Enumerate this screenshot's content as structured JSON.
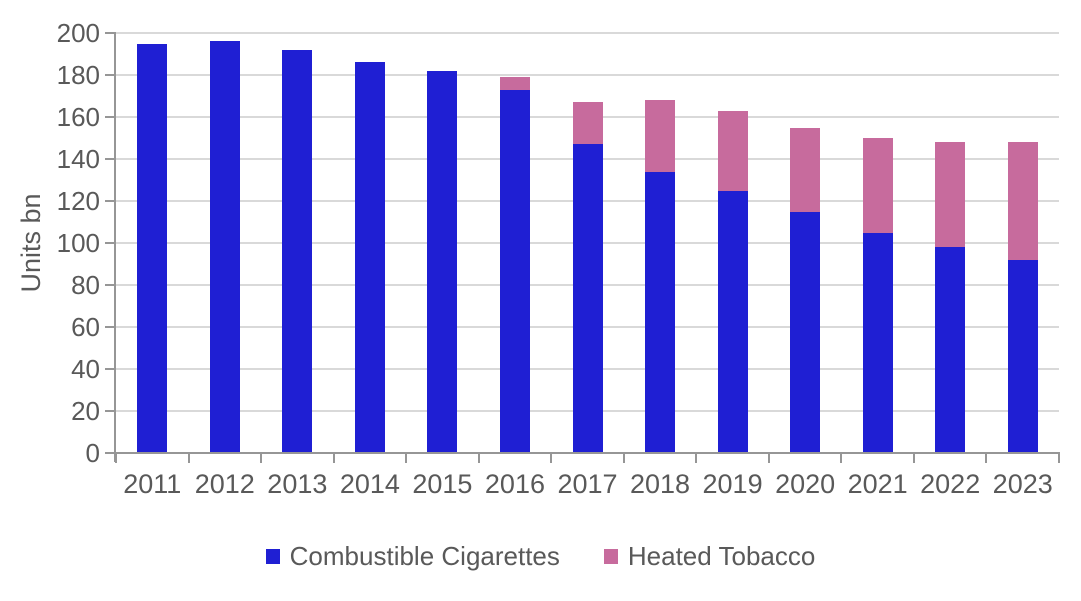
{
  "chart": {
    "y_axis_title": "Units bn"
  },
  "colors": {
    "combustible_blue": "#1f1fd3",
    "heated_pink": "#c76b9d",
    "axis_line": "#969696",
    "gridline": "#d9d9d9",
    "label_text": "#595959"
  },
  "chart_data": {
    "type": "bar",
    "stacked": true,
    "title": "",
    "xlabel": "",
    "ylabel": "Units bn",
    "ylim": [
      0,
      200
    ],
    "ytick_interval": 20,
    "yticks": [
      0,
      20,
      40,
      60,
      80,
      100,
      120,
      140,
      160,
      180,
      200
    ],
    "grid": true,
    "legend_position": "bottom",
    "categories": [
      "2011",
      "2012",
      "2013",
      "2014",
      "2015",
      "2016",
      "2017",
      "2018",
      "2019",
      "2020",
      "2021",
      "2022",
      "2023"
    ],
    "series": [
      {
        "name": "Combustible Cigarettes",
        "color": "#1f1fd3",
        "values": [
          195,
          196,
          192,
          186,
          182,
          173,
          147,
          134,
          125,
          115,
          105,
          98,
          92
        ]
      },
      {
        "name": "Heated Tobacco",
        "color": "#c76b9d",
        "values": [
          0,
          0,
          0,
          0,
          0,
          6,
          20,
          34,
          38,
          40,
          45,
          50,
          56
        ]
      }
    ],
    "totals": [
      195,
      196,
      192,
      186,
      182,
      179,
      167,
      168,
      163,
      155,
      150,
      148,
      148
    ]
  }
}
